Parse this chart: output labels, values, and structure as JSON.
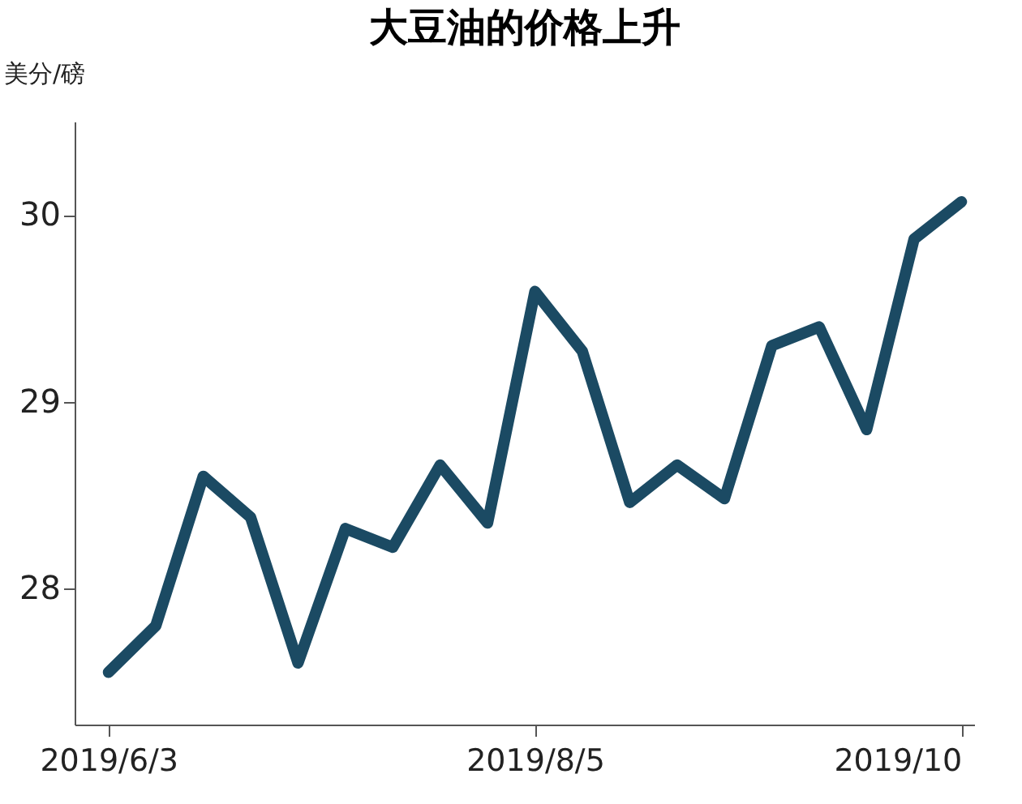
{
  "chart_data": {
    "type": "line",
    "title": "大豆油的价格上升",
    "ylabel": "美分/磅",
    "x": [
      "2019-06-03",
      "2019-06-10",
      "2019-06-17",
      "2019-06-24",
      "2019-07-01",
      "2019-07-08",
      "2019-07-15",
      "2019-07-22",
      "2019-07-29",
      "2019-08-05",
      "2019-08-12",
      "2019-08-19",
      "2019-08-26",
      "2019-09-02",
      "2019-09-09",
      "2019-09-16",
      "2019-09-23",
      "2019-09-30",
      "2019-10-07"
    ],
    "series": [
      {
        "color": "#1b4a63",
        "values": [
          27.55,
          27.8,
          28.6,
          28.38,
          27.6,
          28.32,
          28.22,
          28.66,
          28.35,
          29.59,
          29.27,
          28.46,
          28.66,
          28.48,
          29.3,
          29.4,
          28.85,
          29.87,
          30.07
        ]
      }
    ],
    "xlim": [
      "2019-05-29",
      "2019-10-09"
    ],
    "ylim": [
      27.27,
      30.5
    ],
    "xticks": [
      {
        "value": "2019-06-03",
        "label": "2019/6/3"
      },
      {
        "value": "2019-08-05",
        "label": "2019/8/5"
      },
      {
        "value": "2019-10-07",
        "label": "2019/10"
      }
    ],
    "yticks": [
      28,
      29,
      30
    ],
    "grid": false,
    "marker": "none",
    "line_style": "solid"
  }
}
